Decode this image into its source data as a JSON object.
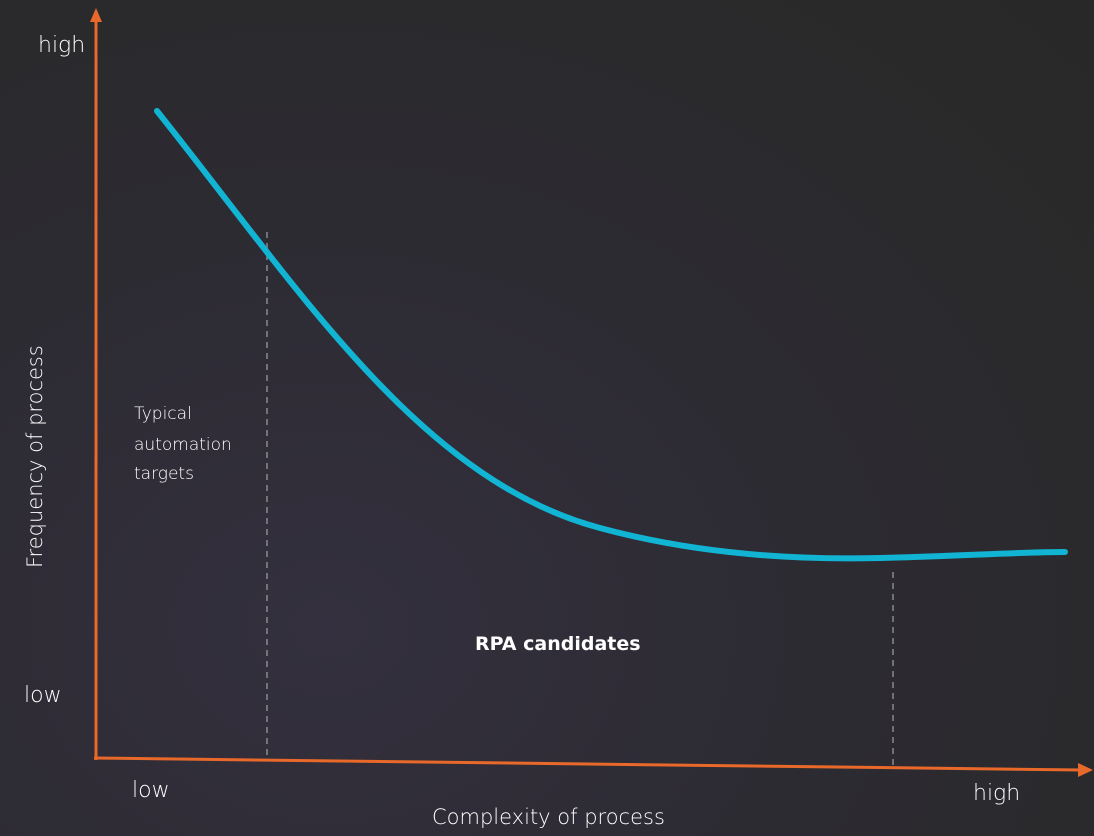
{
  "colors": {
    "axis": "#e8692a",
    "curve": "#12b4d3",
    "guide": "#8a8a8a",
    "text": "#ffffff",
    "background": "#2b2b2e"
  },
  "y_axis": {
    "title": "Frequency of process",
    "high_label": "high",
    "low_label": "low"
  },
  "x_axis": {
    "title": "Complexity of process",
    "low_label": "low",
    "high_label": "high"
  },
  "regions": {
    "left_label": [
      "Typical",
      "automation",
      "targets"
    ],
    "center_label": "RPA candidates"
  },
  "curve": {
    "description_shape": "decreasing then flattening"
  }
}
